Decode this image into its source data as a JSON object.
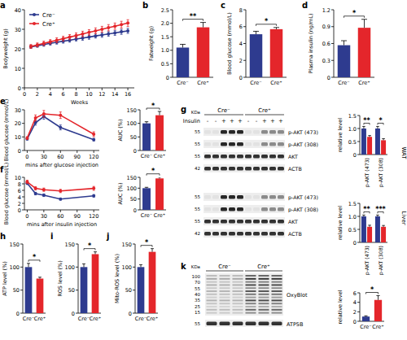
{
  "chart_data": [
    {
      "panel": "a",
      "type": "line",
      "y_label": "Bodyweight (g)",
      "x_label": "Weeks",
      "x": [
        1,
        2,
        3,
        4,
        5,
        6,
        7,
        8,
        9,
        10,
        11,
        12,
        13,
        14,
        15,
        16
      ],
      "xlim": [
        0,
        17
      ],
      "xticks": [
        0,
        2,
        4,
        6,
        8,
        10,
        12,
        14,
        16
      ],
      "ylim": [
        0,
        40
      ],
      "yticks": [
        0,
        10,
        20,
        30,
        40
      ],
      "legend": "top-left",
      "series": [
        {
          "name": "Cre⁻",
          "color": "#2e3b8f",
          "marker": "circle",
          "values": [
            21.0,
            21.6,
            22.2,
            22.8,
            23.3,
            23.9,
            24.4,
            25.0,
            25.5,
            26.0,
            26.6,
            27.1,
            27.6,
            28.1,
            28.7,
            29.2
          ],
          "errors": [
            0.8,
            0.8,
            0.9,
            0.9,
            0.9,
            1.0,
            1.0,
            1.0,
            1.1,
            1.1,
            1.1,
            1.2,
            1.2,
            1.2,
            1.3,
            1.3
          ]
        },
        {
          "name": "Cre⁺",
          "color": "#e4262b",
          "marker": "circle",
          "values": [
            21.2,
            22.0,
            22.8,
            23.6,
            24.4,
            25.2,
            26.0,
            26.8,
            27.6,
            28.4,
            29.2,
            30.0,
            30.8,
            31.6,
            32.4,
            33.2
          ],
          "errors": [
            1.0,
            1.0,
            1.1,
            1.1,
            1.2,
            1.2,
            1.3,
            1.3,
            1.4,
            1.4,
            1.5,
            1.5,
            1.6,
            1.6,
            1.7,
            1.7
          ]
        }
      ]
    },
    {
      "panel": "b",
      "type": "bar",
      "y_label": "Fatweight (g)",
      "categories": [
        "Cre⁻",
        "Cre⁺"
      ],
      "values": [
        1.1,
        1.85
      ],
      "errors": [
        0.12,
        0.18
      ],
      "colors": [
        "#2e3b8f",
        "#e4262b"
      ],
      "ylim": [
        0,
        2.5
      ],
      "yticks": [
        0,
        0.5,
        {
          "value": 1,
          "label": "1.0"
        },
        1.5,
        {
          "value": 2,
          "label": "2.0"
        },
        2.5
      ],
      "annotations": [
        "**"
      ]
    },
    {
      "panel": "c",
      "type": "bar",
      "y_label": "Blood glucose (mmol/L)",
      "categories": [
        "Cre⁻",
        "Cre⁺"
      ],
      "values": [
        5.1,
        5.7
      ],
      "errors": [
        0.35,
        0.2
      ],
      "colors": [
        "#2e3b8f",
        "#e4262b"
      ],
      "ylim": [
        0,
        8
      ],
      "yticks": [
        0,
        2,
        4,
        6,
        8
      ],
      "annotations": [
        "*"
      ]
    },
    {
      "panel": "d",
      "type": "bar",
      "y_label": "Plasma insulin (ng/mL)",
      "categories": [
        "Cre⁻",
        "Cre⁺"
      ],
      "values": [
        0.57,
        0.88
      ],
      "errors": [
        0.08,
        0.15
      ],
      "colors": [
        "#2e3b8f",
        "#e4262b"
      ],
      "ylim": [
        0,
        1.2
      ],
      "yticks": [
        0,
        0.3,
        0.6,
        0.9,
        1.2
      ],
      "annotations": [
        "*"
      ]
    },
    {
      "panel": "e",
      "type": "line",
      "y_label": "Blood glucose (mmol/L)",
      "x_label": "mins after glucose injection",
      "x": [
        0,
        15,
        30,
        60,
        120
      ],
      "xlim": [
        -5,
        130
      ],
      "xticks": [
        0,
        30,
        60,
        90,
        120
      ],
      "ylim": [
        0,
        30
      ],
      "yticks": [
        0,
        10,
        20,
        30
      ],
      "series": [
        {
          "color": "#2e3b8f",
          "marker": "circle",
          "values": [
            8.5,
            20.5,
            25,
            17,
            8
          ],
          "errors": [
            0.8,
            1.8,
            2,
            1.8,
            1
          ]
        },
        {
          "color": "#e4262b",
          "marker": "circle",
          "values": [
            9.2,
            24,
            27,
            26,
            12
          ],
          "errors": [
            1,
            2.2,
            2.5,
            2.4,
            1.8
          ]
        }
      ]
    },
    {
      "type": "bar",
      "y_label": "AUC (%)",
      "categories": [
        "Cre⁻",
        "Cre⁺"
      ],
      "values": [
        100,
        130
      ],
      "errors": [
        6,
        14
      ],
      "colors": [
        "#2e3b8f",
        "#e4262b"
      ],
      "ylim": [
        0,
        150
      ],
      "yticks": [
        0,
        50,
        100,
        150
      ],
      "annotations": [
        "*"
      ]
    },
    {
      "panel": "f",
      "type": "line",
      "y_label": "Blood glucose (mmol/L)",
      "x_label": "mins after insulin injection",
      "x": [
        0,
        15,
        30,
        60,
        120
      ],
      "xlim": [
        -5,
        130
      ],
      "xticks": [
        0,
        30,
        60,
        90,
        120
      ],
      "ylim": [
        0,
        10
      ],
      "yticks": [
        0,
        2,
        4,
        6,
        8,
        10
      ],
      "series": [
        {
          "color": "#2e3b8f",
          "marker": "circle",
          "values": [
            8.2,
            5,
            4.5,
            3.3,
            4.3
          ],
          "errors": [
            0.4,
            0.4,
            0.4,
            0.3,
            0.4
          ]
        },
        {
          "color": "#e4262b",
          "marker": "circle",
          "values": [
            8.6,
            6.6,
            6.2,
            5.8,
            6.6
          ],
          "errors": [
            0.5,
            0.5,
            0.5,
            0.5,
            0.6
          ]
        }
      ]
    },
    {
      "type": "bar",
      "y_label": "AUC (%)",
      "categories": [
        "Cre⁻",
        "Cre⁺"
      ],
      "values": [
        100,
        145
      ],
      "errors": [
        4,
        6
      ],
      "colors": [
        "#2e3b8f",
        "#e4262b"
      ],
      "ylim": [
        0,
        150
      ],
      "yticks": [
        0,
        50,
        100,
        150
      ],
      "annotations": [
        "*"
      ]
    },
    {
      "type": "bar",
      "y_label": "relative level",
      "categories": [
        "p-AKT (473)",
        "p-AKT (308)"
      ],
      "series": [
        {
          "color": "#2e3b8f",
          "values": [
            1,
            1
          ],
          "errors": [
            0.08,
            0.08
          ]
        },
        {
          "color": "#e4262b",
          "values": [
            0.68,
            0.55
          ],
          "errors": [
            0.05,
            0.06
          ]
        }
      ],
      "ylim": [
        0,
        1.5
      ],
      "yticks": [
        0,
        0.5,
        {
          "value": 1,
          "label": "1.0"
        },
        1.5
      ],
      "annotations": [
        "**",
        "*"
      ]
    },
    {
      "type": "bar",
      "y_label": "relative level",
      "categories": [
        "p-AKT (473)",
        "p-AKT (308)"
      ],
      "series": [
        {
          "color": "#2e3b8f",
          "values": [
            1,
            1
          ],
          "errors": [
            0.05,
            0.05
          ]
        },
        {
          "color": "#e4262b",
          "values": [
            0.6,
            0.6
          ],
          "errors": [
            0.06,
            0.05
          ]
        }
      ],
      "ylim": [
        0,
        1.5
      ],
      "yticks": [
        0,
        0.5,
        {
          "value": 1,
          "label": "1.0"
        },
        1.5
      ],
      "annotations": [
        "**",
        "***"
      ]
    },
    {
      "panel": "h",
      "type": "bar",
      "y_label": "ATP level (%)",
      "categories": [
        "Cre⁻",
        "Cre⁺"
      ],
      "values": [
        100,
        75
      ],
      "errors": [
        8,
        3
      ],
      "colors": [
        "#2e3b8f",
        "#e4262b"
      ],
      "ylim": [
        0,
        150
      ],
      "yticks": [
        0,
        50,
        100,
        150
      ],
      "annotations": [
        "*"
      ]
    },
    {
      "panel": "i",
      "type": "bar",
      "y_label": "ROS level (%)",
      "categories": [
        "Cre⁻",
        "Cre⁺"
      ],
      "values": [
        100,
        128
      ],
      "errors": [
        7,
        5
      ],
      "colors": [
        "#2e3b8f",
        "#e4262b"
      ],
      "ylim": [
        0,
        150
      ],
      "yticks": [
        0,
        50,
        100,
        150
      ],
      "annotations": [
        "*"
      ]
    },
    {
      "panel": "j",
      "type": "bar",
      "y_label": "Mito-ROS level (%)",
      "categories": [
        "Cre⁻",
        "Cre⁺"
      ],
      "values": [
        100,
        133
      ],
      "errors": [
        5,
        7
      ],
      "colors": [
        "#2e3b8f",
        "#e4262b"
      ],
      "ylim": [
        0,
        150
      ],
      "yticks": [
        0,
        50,
        100,
        150
      ],
      "annotations": [
        "*"
      ]
    },
    {
      "type": "bar",
      "y_label": "relative level",
      "categories": [
        "Cre⁻",
        "Cre⁺"
      ],
      "values": [
        1,
        4.5
      ],
      "errors": [
        0.15,
        0.9
      ],
      "colors": [
        "#2e3b8f",
        "#e4262b"
      ],
      "ylim": [
        0,
        6
      ],
      "yticks": [
        0,
        2,
        4,
        6
      ],
      "annotations": [
        "*"
      ]
    }
  ],
  "blots": [
    {
      "panel": "g",
      "groups": [
        "Cre⁻",
        "Cre⁺"
      ],
      "row_label": "Insulin",
      "lanes": [
        "-",
        "-",
        "+",
        "+",
        "+",
        "-",
        "-",
        "+",
        "+",
        "+"
      ],
      "unit": "KDa",
      "sections": [
        {
          "tissue": "WAT",
          "rows": [
            {
              "protein": "p-AKT (473)",
              "marker": 55
            },
            {
              "protein": "p-AKT (308)",
              "marker": 55
            },
            {
              "protein": "AKT",
              "marker": 55
            },
            {
              "protein": "ACTB",
              "marker": 42
            }
          ]
        },
        {
          "tissue": "Liver",
          "rows": [
            {
              "protein": "p-AKT (473)",
              "marker": 55
            },
            {
              "protein": "p-AKT (308)",
              "marker": 55
            },
            {
              "protein": "AKT",
              "marker": 55
            },
            {
              "protein": "ACTB",
              "marker": 42
            }
          ]
        }
      ]
    },
    {
      "panel": "k",
      "groups": [
        "Cre⁻",
        "Cre⁺"
      ],
      "unit": "KDa",
      "markers": [
        100,
        70,
        55,
        40,
        35,
        25,
        15
      ],
      "label": "OxyBlot",
      "loading": {
        "protein": "ATP5B",
        "marker": 55
      }
    }
  ]
}
